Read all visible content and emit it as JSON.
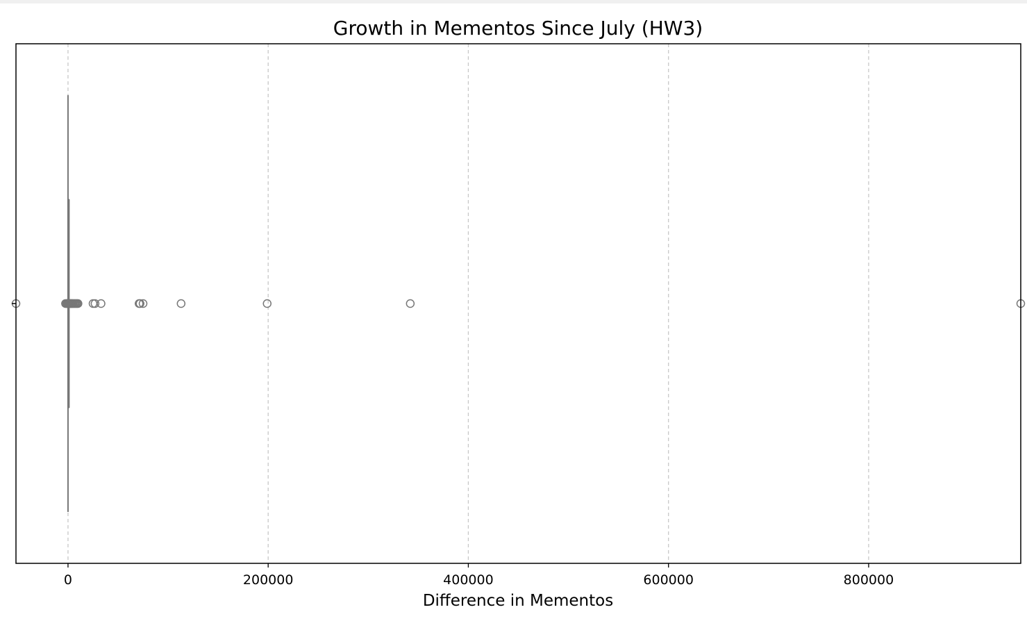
{
  "chart_data": {
    "type": "box",
    "orientation": "horizontal",
    "title": "Growth in Mementos Since July (HW3)",
    "xlabel": "Difference in Mementos",
    "ylabel": "",
    "xlim": [
      -52000,
      952000
    ],
    "xticks": [
      0,
      200000,
      400000,
      600000,
      800000
    ],
    "xtick_labels": [
      "0",
      "200000",
      "400000",
      "600000",
      "800000"
    ],
    "grid": "vertical dashed",
    "box": {
      "min": 0,
      "q1": 0,
      "median": 0,
      "q3": 500,
      "max": 1000
    },
    "outliers": [
      -52000,
      -2500,
      -1500,
      -800,
      0,
      700,
      1400,
      2100,
      2800,
      3500,
      4200,
      5000,
      6000,
      7000,
      8000,
      9000,
      10000,
      25000,
      27000,
      33000,
      71000,
      72000,
      75000,
      113000,
      199000,
      342000,
      952000
    ],
    "colors": {
      "box": "#777777",
      "grid": "#c8c8c8",
      "frame": "#000000"
    }
  }
}
